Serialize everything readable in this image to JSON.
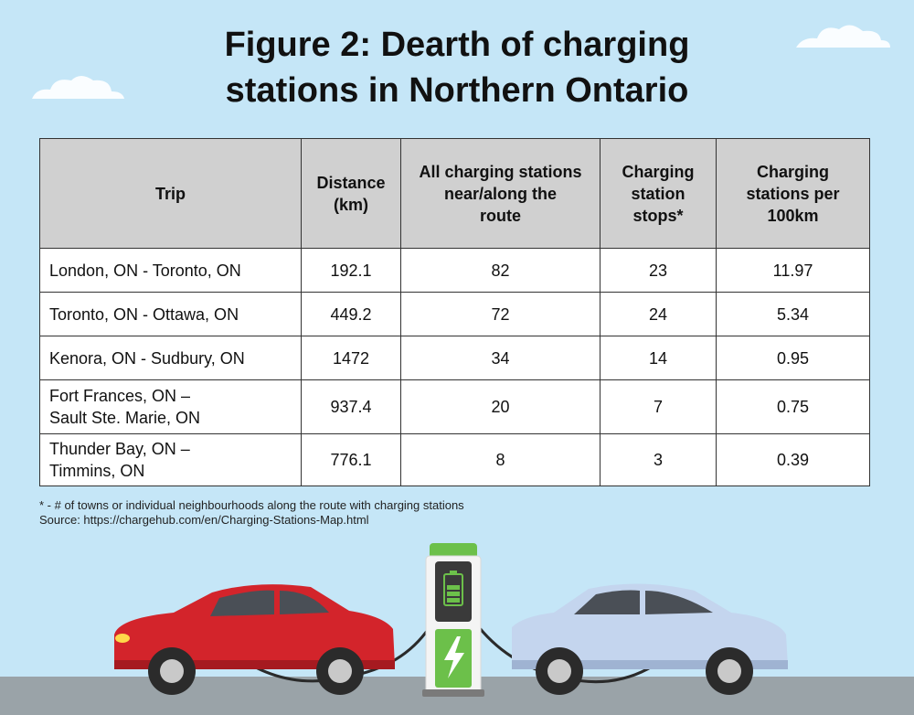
{
  "title_line1": "Figure 2: Dearth of charging",
  "title_line2": "stations in Northern Ontario",
  "columns": {
    "trip": "Trip",
    "distance_l1": "Distance",
    "distance_l2": "(km)",
    "stations_l1": "All charging stations",
    "stations_l2": "near/along the",
    "stations_l3": "route",
    "stops_l1": "Charging",
    "stops_l2": "station",
    "stops_l3": "stops*",
    "per100_l1": "Charging",
    "per100_l2": "stations per",
    "per100_l3": "100km"
  },
  "rows": [
    {
      "trip_l1": "London, ON - Toronto, ON",
      "trip_l2": "",
      "distance": "192.1",
      "stations": "82",
      "stops": "23",
      "per100": "11.97"
    },
    {
      "trip_l1": "Toronto, ON - Ottawa, ON",
      "trip_l2": "",
      "distance": "449.2",
      "stations": "72",
      "stops": "24",
      "per100": "5.34"
    },
    {
      "trip_l1": "Kenora, ON - Sudbury, ON",
      "trip_l2": "",
      "distance": "1472",
      "stations": "34",
      "stops": "14",
      "per100": "0.95"
    },
    {
      "trip_l1": "Fort Frances, ON –",
      "trip_l2": "Sault Ste. Marie, ON",
      "distance": "937.4",
      "stations": "20",
      "stops": "7",
      "per100": "0.75"
    },
    {
      "trip_l1": "Thunder Bay, ON –",
      "trip_l2": "Timmins, ON",
      "distance": "776.1",
      "stations": "8",
      "stops": "3",
      "per100": "0.39"
    }
  ],
  "footnote": "* - # of towns or individual neighbourhoods along the route with charging stations",
  "source": "Source: https://chargehub.com/en/Charging-Stations-Map.html",
  "colors": {
    "sky": "#c5e6f7",
    "header_bg": "#d0d0d0",
    "red_car": "#d3242b",
    "blue_car": "#c4d5ee",
    "charger_green": "#6cc04a",
    "road": "#9aa3a8"
  },
  "icons": [
    "cloud-icon",
    "charging-station-icon",
    "battery-icon",
    "lightning-bolt-icon",
    "red-car-icon",
    "blue-car-icon"
  ],
  "chart_data": {
    "type": "table",
    "title": "Figure 2: Dearth of charging stations in Northern Ontario",
    "columns": [
      "Trip",
      "Distance (km)",
      "All charging stations near/along the route",
      "Charging station stops*",
      "Charging stations per 100km"
    ],
    "rows": [
      [
        "London, ON - Toronto, ON",
        192.1,
        82,
        23,
        11.97
      ],
      [
        "Toronto, ON - Ottawa, ON",
        449.2,
        72,
        24,
        5.34
      ],
      [
        "Kenora, ON - Sudbury, ON",
        1472,
        34,
        14,
        0.95
      ],
      [
        "Fort Frances, ON – Sault Ste. Marie, ON",
        937.4,
        20,
        7,
        0.75
      ],
      [
        "Thunder Bay, ON – Timmins, ON",
        776.1,
        8,
        3,
        0.39
      ]
    ]
  }
}
